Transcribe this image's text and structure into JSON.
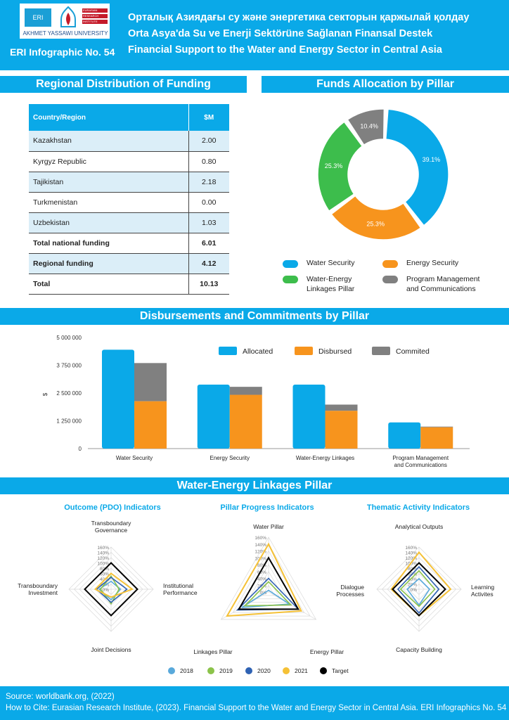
{
  "header": {
    "logo_eri": "ERI",
    "logo_lines": [
      "EURASIAN",
      "RESEARCH",
      "INSTITUTE"
    ],
    "logo_university": "AKHMET YASSAWI UNIVERSITY",
    "eri_number": "ERI Infographic No. 54",
    "title_kz": "Орталық Азиядағы су және энергетика секторын қаржылай қолдау",
    "title_tr": "Orta Asya'da Su ve Enerji Sektörüne Sağlanan Finansal Destek",
    "title_en": "Financial Support to the Water and Energy Sector in Central Asia"
  },
  "sections": {
    "regional": "Regional Distribution of Funding",
    "pillar_alloc": "Funds Allocation by Pillar",
    "disbursements": "Disbursements and Commitments by Pillar",
    "linkages": "Water-Energy Linkages Pillar"
  },
  "table": {
    "headers": [
      "Country/Region",
      "$M"
    ],
    "rows": [
      {
        "name": "Kazakhstan",
        "value": "2.00"
      },
      {
        "name": "Kyrgyz Republic",
        "value": "0.80"
      },
      {
        "name": "Tajikistan",
        "value": "2.18"
      },
      {
        "name": "Turkmenistan",
        "value": "0.00"
      },
      {
        "name": "Uzbekistan",
        "value": "1.03"
      },
      {
        "name": "Total national funding",
        "value": "6.01"
      },
      {
        "name": "Regional funding",
        "value": "4.12"
      },
      {
        "name": "Total",
        "value": "10.13"
      }
    ]
  },
  "colors": {
    "blue": "#0aa9e8",
    "orange": "#f7941d",
    "green": "#3dbd4c",
    "gray": "#808080",
    "dark_blue": "#2f62b3",
    "light_blue": "#59a9db",
    "yellow": "#f5c136",
    "light_green": "#8bc34a",
    "black": "#000000"
  },
  "chart_data": [
    {
      "type": "pie",
      "title": "Funds Allocation by Pillar",
      "labels": [
        "Water Security",
        "Energy Security",
        "Water-Energy Linkages Pillar",
        "Program Management and Communications"
      ],
      "values": [
        39.1,
        25.3,
        25.3,
        10.4
      ],
      "value_labels": [
        "39.1%",
        "25.3%",
        "25.3%",
        "10.4%"
      ],
      "legend_labels": [
        "Water Security",
        "Energy Security",
        "Water-Energy\nLinkages Pillar",
        "Program Management\nand Communications"
      ],
      "colors": [
        "#0aa9e8",
        "#f7941d",
        "#3dbd4c",
        "#808080"
      ]
    },
    {
      "type": "bar",
      "title": "Disbursements and Commitments by Pillar",
      "ylabel": "$",
      "ylim": [
        0,
        5000000
      ],
      "yticks": [
        0,
        1250000,
        2500000,
        3750000,
        5000000
      ],
      "ytick_labels": [
        "0",
        "1 250 000",
        "2 500 000",
        "3 750 000",
        "5 000 000"
      ],
      "categories": [
        "Water Security",
        "Energy Security",
        "Water-Energy Linkages",
        "Program Management\nand Communications"
      ],
      "series": [
        {
          "name": "Allocated",
          "values": [
            4450000,
            2880000,
            2880000,
            1180000
          ]
        },
        {
          "name": "Disbursed",
          "values": [
            2130000,
            2420000,
            1700000,
            960000
          ]
        },
        {
          "name": "Commited",
          "values": [
            1720000,
            360000,
            280000,
            30000
          ]
        }
      ],
      "stacked_pair": [
        "Disbursed",
        "Commited"
      ]
    },
    {
      "type": "radar",
      "title": "Outcome (PDO) Indicators",
      "axes": [
        "Transboundary\nGovernance",
        "Institutional\nPerformance",
        "Joint Decisions",
        "Transboundary\nInvestment"
      ],
      "scale": [
        "0%",
        "20%",
        "40%",
        "60%",
        "80%",
        "100%",
        "120%",
        "140%",
        "160%"
      ],
      "series": [
        {
          "name": "2018",
          "values": [
            0.3,
            0.35,
            0.4,
            0.45
          ]
        },
        {
          "name": "2019",
          "values": [
            0.5,
            0.3,
            0.55,
            0.4
          ]
        },
        {
          "name": "2020",
          "values": [
            0.45,
            0.6,
            0.5,
            0.55
          ]
        },
        {
          "name": "2021",
          "values": [
            0.6,
            0.8,
            0.3,
            0.6
          ]
        },
        {
          "name": "Target",
          "values": [
            1.0,
            1.0,
            1.0,
            1.0
          ]
        }
      ]
    },
    {
      "type": "radar",
      "title": "Pillar Progress Indicators",
      "axes": [
        "Water Pillar",
        "Energy Pillar",
        "Linkages Pillar"
      ],
      "scale": [
        "0%",
        "20%",
        "40%",
        "60%",
        "80%",
        "100%",
        "120%",
        "140%",
        "160%"
      ],
      "series": [
        {
          "name": "2018",
          "values": [
            0.05,
            0.7,
            0.9
          ]
        },
        {
          "name": "2019",
          "values": [
            0.3,
            0.75,
            0.8
          ]
        },
        {
          "name": "2020",
          "values": [
            0.4,
            1.0,
            1.05
          ]
        },
        {
          "name": "2021",
          "values": [
            1.4,
            1.1,
            1.4
          ]
        },
        {
          "name": "Target",
          "values": [
            1.0,
            1.0,
            1.0
          ]
        }
      ]
    },
    {
      "type": "radar",
      "title": "Thematic Activity Indicators",
      "axes": [
        "Analytical Outputs",
        "Learning\nActivites",
        "Capacity Building",
        "Dialogue\nProcesses"
      ],
      "scale": [
        "0%",
        "20%",
        "40%",
        "60%",
        "80%",
        "100%",
        "120%",
        "140%",
        "160%"
      ],
      "series": [
        {
          "name": "2018",
          "values": [
            0.4,
            0.4,
            0.6,
            0.45
          ]
        },
        {
          "name": "2019",
          "values": [
            0.7,
            0.6,
            0.65,
            0.7
          ]
        },
        {
          "name": "2020",
          "values": [
            0.85,
            0.75,
            0.9,
            0.8
          ]
        },
        {
          "name": "2021",
          "values": [
            1.4,
            1.2,
            1.0,
            1.05
          ]
        },
        {
          "name": "Target",
          "values": [
            1.0,
            1.0,
            1.0,
            1.0
          ]
        }
      ]
    }
  ],
  "radar_legend": [
    "2018",
    "2019",
    "2020",
    "2021",
    "Target"
  ],
  "radar_colors": [
    "#59a9db",
    "#8bc34a",
    "#2f62b3",
    "#f5c136",
    "#000000"
  ],
  "footer": {
    "source": "Source: worldbank.org, (2022)",
    "cite": "How to Cite: Eurasian Research Institute, (2023). Financial Support to the Water and Energy Sector in Central Asia. ERI Infographics No. 54"
  }
}
